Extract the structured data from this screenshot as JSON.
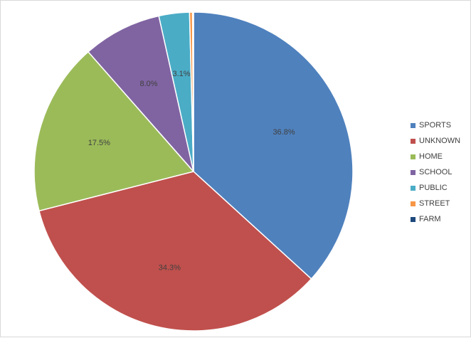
{
  "chart_data": {
    "type": "pie",
    "title": "",
    "categories": [
      "SPORTS",
      "UNKNOWN",
      "HOME",
      "SCHOOL",
      "PUBLIC",
      "STREET",
      "FARM"
    ],
    "values": [
      36.8,
      34.3,
      17.5,
      8.0,
      3.1,
      0.3,
      0.1
    ],
    "labels": [
      "36.8%",
      "34.3%",
      "17.5%",
      "8.0%",
      "3.1%",
      "",
      ""
    ],
    "colors": [
      "#4f81bd",
      "#c0504d",
      "#9bbb59",
      "#8064a2",
      "#4bacc6",
      "#f79646",
      "#1f497d"
    ],
    "legend_position": "right"
  }
}
